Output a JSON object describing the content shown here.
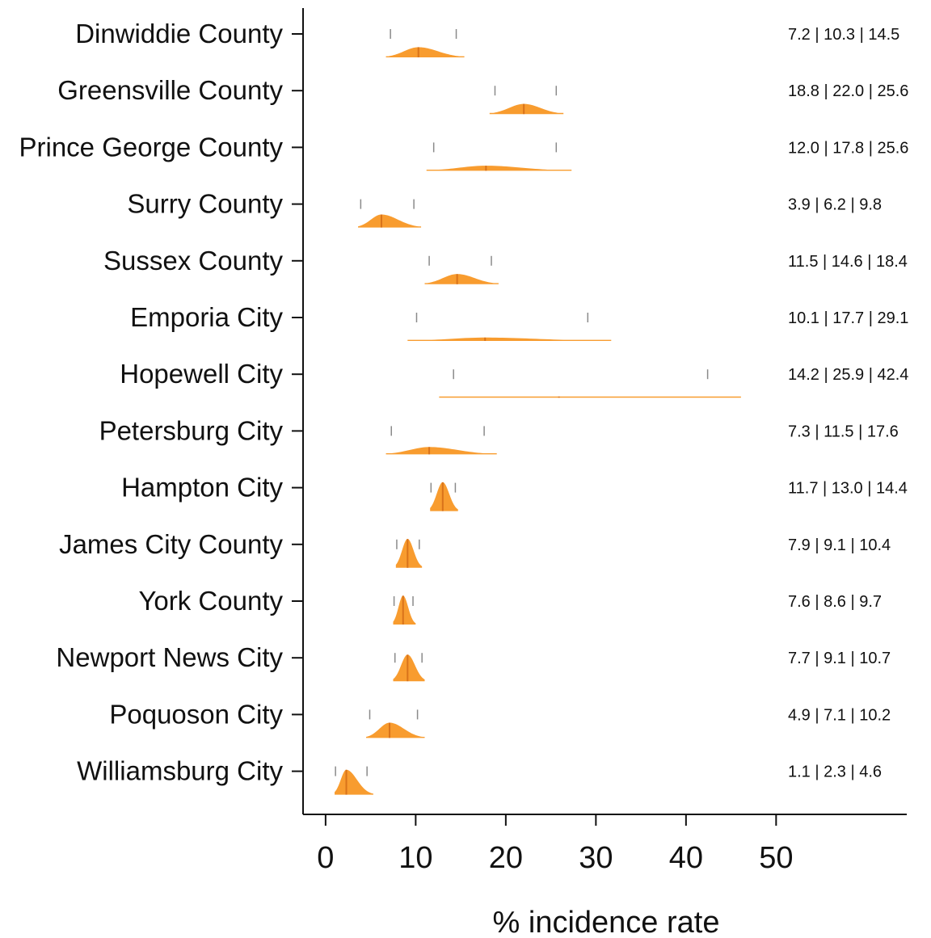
{
  "chart_data": {
    "type": "violin",
    "title": "",
    "xlabel": "% incidence rate",
    "ylabel": "",
    "xlim": [
      -2.5,
      64.5
    ],
    "xticks": [
      0,
      10,
      20,
      30,
      40,
      50
    ],
    "grid": false,
    "legend": "none",
    "fill_color": "#F7941D",
    "median_color": "#D9731A",
    "ci_color": "#8A8A8A",
    "categories": [
      "Dinwiddie County",
      "Greensville County",
      "Prince George County",
      "Surry County",
      "Sussex County",
      "Emporia City",
      "Hopewell City",
      "Petersburg City",
      "Hampton City",
      "James City County",
      "York County",
      "Newport News City",
      "Poquoson City",
      "Williamsburg City"
    ],
    "series": [
      {
        "lower": 7.2,
        "median": 10.3,
        "upper": 14.5,
        "label": "7.2 | 10.3 | 14.5",
        "dist_min": 6.7,
        "dist_max": 15.4,
        "peak": 0.18
      },
      {
        "lower": 18.8,
        "median": 22.0,
        "upper": 25.6,
        "label": "18.8 | 22.0 | 25.6",
        "dist_min": 18.2,
        "dist_max": 26.4,
        "peak": 0.18
      },
      {
        "lower": 12.0,
        "median": 17.8,
        "upper": 25.6,
        "label": "12.0 | 17.8 | 25.6",
        "dist_min": 11.2,
        "dist_max": 27.3,
        "peak": 0.09
      },
      {
        "lower": 3.9,
        "median": 6.2,
        "upper": 9.8,
        "label": "3.9 | 6.2 | 9.8",
        "dist_min": 3.6,
        "dist_max": 10.6,
        "peak": 0.23
      },
      {
        "lower": 11.5,
        "median": 14.6,
        "upper": 18.4,
        "label": "11.5 | 14.6 | 18.4",
        "dist_min": 11.0,
        "dist_max": 19.2,
        "peak": 0.18
      },
      {
        "lower": 10.1,
        "median": 17.7,
        "upper": 29.1,
        "label": "10.1 | 17.7 | 29.1",
        "dist_min": 9.1,
        "dist_max": 31.7,
        "peak": 0.06
      },
      {
        "lower": 14.2,
        "median": 25.9,
        "upper": 42.4,
        "label": "14.2 | 25.9 | 42.4",
        "dist_min": 12.6,
        "dist_max": 46.1,
        "peak": 0.02
      },
      {
        "lower": 7.3,
        "median": 11.5,
        "upper": 17.6,
        "label": "7.3 | 11.5 | 17.6",
        "dist_min": 6.7,
        "dist_max": 19.0,
        "peak": 0.13
      },
      {
        "lower": 11.7,
        "median": 13.0,
        "upper": 14.4,
        "label": "11.7 | 13.0 | 14.4",
        "dist_min": 11.6,
        "dist_max": 14.7,
        "peak": 0.51
      },
      {
        "lower": 7.9,
        "median": 9.1,
        "upper": 10.4,
        "label": "7.9 | 9.1 | 10.4",
        "dist_min": 7.8,
        "dist_max": 10.7,
        "peak": 0.51
      },
      {
        "lower": 7.6,
        "median": 8.6,
        "upper": 9.7,
        "label": "7.6 | 8.6 | 9.7",
        "dist_min": 7.5,
        "dist_max": 10.0,
        "peak": 0.51
      },
      {
        "lower": 7.7,
        "median": 9.1,
        "upper": 10.7,
        "label": "7.7 | 9.1 | 10.7",
        "dist_min": 7.5,
        "dist_max": 11.0,
        "peak": 0.47
      },
      {
        "lower": 4.9,
        "median": 7.1,
        "upper": 10.2,
        "label": "4.9 | 7.1 | 10.2",
        "dist_min": 4.5,
        "dist_max": 11.0,
        "peak": 0.27
      },
      {
        "lower": 1.1,
        "median": 2.3,
        "upper": 4.6,
        "label": "1.1 | 2.3 | 4.6",
        "dist_min": 1.0,
        "dist_max": 5.3,
        "peak": 0.44
      }
    ]
  }
}
